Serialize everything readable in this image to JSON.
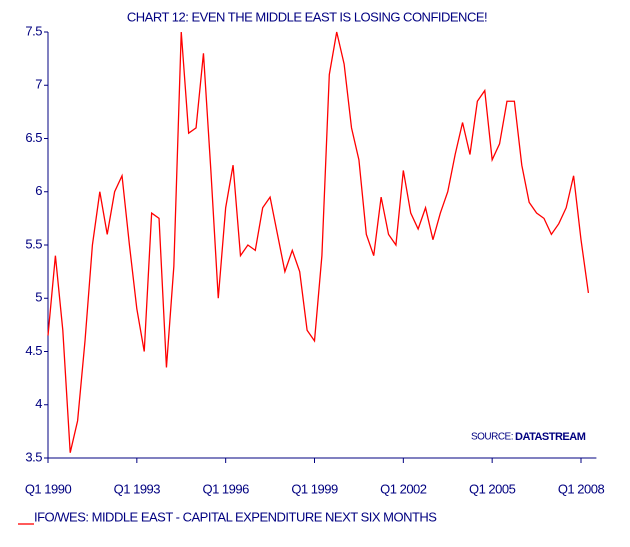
{
  "chart_data": {
    "type": "line",
    "title": "CHART 12: EVEN THE MIDDLE EAST IS LOSING CONFIDENCE!",
    "source_label": "SOURCE:",
    "source": "DATASTREAM",
    "categories": [
      "Q1 1990",
      null,
      null,
      null,
      null,
      null,
      null,
      null,
      null,
      null,
      null,
      null,
      "Q1 1993",
      null,
      null,
      null,
      null,
      null,
      null,
      null,
      null,
      null,
      null,
      null,
      "Q1 1996",
      null,
      null,
      null,
      null,
      null,
      null,
      null,
      null,
      null,
      null,
      null,
      "Q1 1999",
      null,
      null,
      null,
      null,
      null,
      null,
      null,
      null,
      null,
      null,
      null,
      "Q1 2002",
      null,
      null,
      null,
      null,
      null,
      null,
      null,
      null,
      null,
      null,
      null,
      "Q1 2005",
      null,
      null,
      null,
      null,
      null,
      null,
      null,
      null,
      null,
      null,
      null,
      "Q1 2008",
      null
    ],
    "series": [
      {
        "name": "IFO/WES: MIDDLE EAST - CAPITAL EXPENDITURE NEXT SIX MONTHS",
        "color": "#ff0000",
        "values": [
          4.65,
          5.4,
          4.7,
          3.55,
          3.85,
          4.6,
          5.5,
          6.0,
          5.6,
          6.0,
          6.15,
          5.5,
          4.9,
          4.5,
          5.8,
          5.75,
          4.35,
          5.3,
          7.5,
          6.55,
          6.6,
          7.3,
          6.2,
          5.0,
          5.85,
          6.25,
          5.4,
          5.5,
          5.45,
          5.85,
          5.95,
          5.6,
          5.25,
          5.45,
          5.25,
          4.7,
          4.6,
          5.4,
          7.1,
          7.5,
          7.2,
          6.6,
          6.3,
          5.6,
          5.4,
          5.95,
          5.6,
          5.5,
          6.2,
          5.8,
          5.65,
          5.85,
          5.55,
          5.8,
          6.0,
          6.35,
          6.65,
          6.35,
          6.85,
          6.95,
          6.3,
          6.45,
          6.85,
          6.85,
          6.25,
          5.9,
          5.8,
          5.75,
          5.6,
          5.7,
          5.85,
          6.15,
          5.55,
          5.05
        ]
      }
    ],
    "ylim": [
      3.5,
      7.5
    ],
    "yticks": [
      3.5,
      4,
      4.5,
      5,
      5.5,
      6,
      6.5,
      7,
      7.5
    ]
  }
}
